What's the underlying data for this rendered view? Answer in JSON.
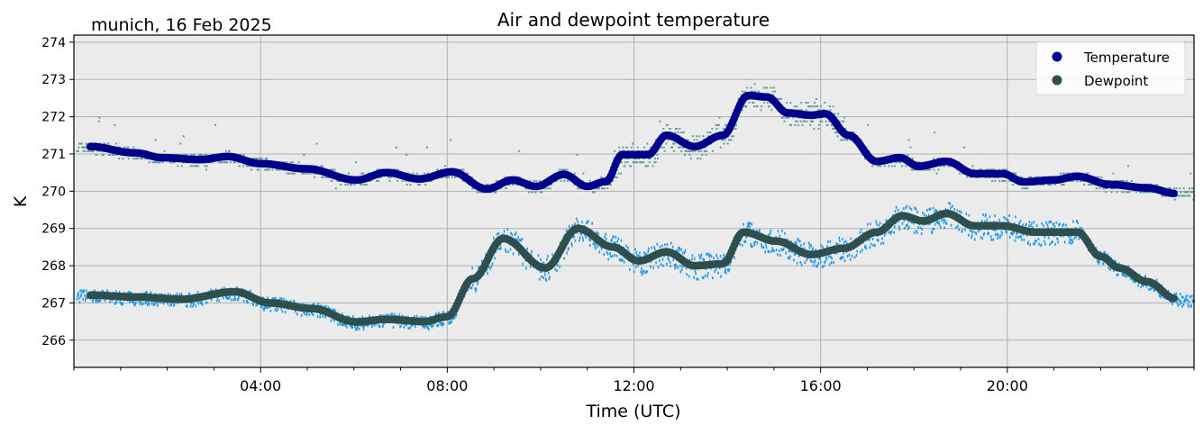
{
  "chart_data": {
    "type": "scatter",
    "title": "Air and dewpoint temperature",
    "subtitle": "munich, 16 Feb 2025",
    "xlabel": "Time (UTC)",
    "ylabel": "K",
    "xlim": [
      0,
      24
    ],
    "ylim": [
      265.27,
      274.19
    ],
    "xticks": [
      {
        "value": 4,
        "label": "04:00"
      },
      {
        "value": 8,
        "label": "08:00"
      },
      {
        "value": 12,
        "label": "12:00"
      },
      {
        "value": 16,
        "label": "16:00"
      },
      {
        "value": 20,
        "label": "20:00"
      }
    ],
    "yticks": [
      266,
      267,
      268,
      269,
      270,
      271,
      272,
      273,
      274
    ],
    "grid": true,
    "legend": {
      "placement": "top-right"
    },
    "colors": {
      "temperature": "#00008b",
      "dewpoint": "#2f4f4f",
      "temperature_raw": "#5f9ea0",
      "dewpoint_raw": "#1e9be8",
      "background": "#ebebeb"
    },
    "series": [
      {
        "name": "Temperature",
        "x": [
          0.35,
          1.3,
          1.9,
          2.7,
          3.3,
          4.0,
          5.0,
          6.05,
          6.7,
          7.4,
          8.1,
          8.85,
          9.4,
          9.9,
          10.5,
          11.0,
          11.4,
          11.75,
          12.3,
          12.7,
          13.3,
          13.9,
          14.45,
          14.85,
          15.3,
          15.8,
          16.1,
          16.6,
          17.2,
          17.7,
          18.1,
          18.7,
          19.3,
          19.9,
          20.35,
          21.0,
          21.5,
          22.2,
          23.0,
          23.6
        ],
        "y": [
          271.2,
          271.03,
          270.9,
          270.85,
          270.93,
          270.74,
          270.6,
          270.3,
          270.5,
          270.33,
          270.52,
          270.06,
          270.3,
          270.13,
          270.45,
          270.13,
          270.26,
          270.98,
          270.98,
          271.5,
          271.2,
          271.5,
          272.57,
          272.53,
          272.1,
          272.04,
          272.08,
          271.5,
          270.8,
          270.9,
          270.67,
          270.8,
          270.47,
          270.47,
          270.25,
          270.3,
          270.4,
          270.18,
          270.09,
          269.94
        ]
      },
      {
        "name": "Dewpoint",
        "x": [
          0.35,
          1.3,
          2.3,
          3.45,
          4.2,
          5.1,
          6.05,
          6.7,
          7.5,
          8.0,
          8.55,
          9.2,
          10.1,
          10.8,
          11.55,
          12.1,
          12.7,
          13.3,
          13.9,
          14.35,
          15.05,
          15.8,
          16.5,
          17.2,
          17.75,
          18.2,
          18.7,
          19.3,
          19.9,
          20.6,
          21.5,
          22.0,
          22.4,
          23.0,
          23.6
        ],
        "y": [
          267.21,
          267.16,
          267.1,
          267.3,
          267.0,
          266.85,
          266.49,
          266.56,
          266.5,
          266.63,
          267.65,
          268.73,
          267.94,
          269.0,
          268.5,
          268.13,
          268.37,
          268.0,
          268.05,
          268.9,
          268.66,
          268.3,
          268.47,
          268.9,
          269.34,
          269.2,
          269.4,
          269.07,
          269.07,
          268.9,
          268.9,
          268.25,
          267.94,
          267.57,
          267.12
        ]
      }
    ]
  }
}
